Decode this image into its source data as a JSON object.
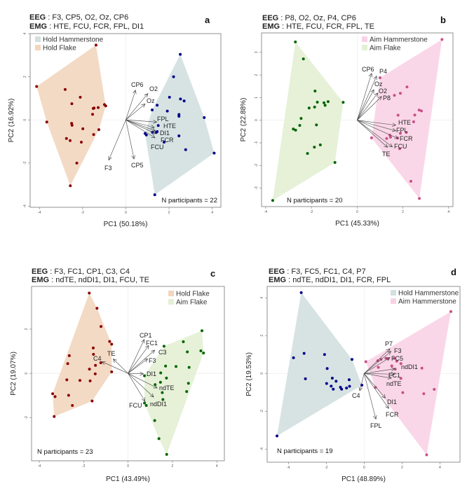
{
  "chart_data": [
    {
      "type": "scatter",
      "panel": "a",
      "eeg_label": "EEG",
      "eeg": " : F3, CP5, O2, Oz, CP6",
      "emg_label": "EMG",
      "emg": " : HTE, FCU, FCR, FPL, DI1",
      "xlabel": "PC1 (50.18%)",
      "ylabel": "PC2 (16.92%)",
      "annotation": "N participants = 22",
      "legend_position": "top-left",
      "xlim": [
        -4.43,
        4.4
      ],
      "ylim": [
        -4.05,
        4.0
      ],
      "xticks": [
        -4,
        -2,
        0,
        2,
        4
      ],
      "yticks": [
        -4,
        -2,
        0,
        2,
        4
      ],
      "series": [
        {
          "name": "Hold Hammerstone",
          "color": "#00008b",
          "fill": "#d3e0e0",
          "points": [
            [
              2.52,
              3.04
            ],
            [
              2.21,
              2.0
            ],
            [
              2.02,
              1.05
            ],
            [
              2.53,
              0.97
            ],
            [
              2.7,
              0.88
            ],
            [
              1.45,
              0.68
            ],
            [
              1.22,
              0.46
            ],
            [
              1.92,
              0.41
            ],
            [
              2.46,
              0.25
            ],
            [
              2.46,
              0.17
            ],
            [
              3.63,
              0.11
            ],
            [
              1.5,
              -0.26
            ],
            [
              1.23,
              -0.57
            ],
            [
              1.45,
              -0.54
            ],
            [
              1.41,
              -0.58
            ],
            [
              0.89,
              -0.63
            ],
            [
              0.95,
              -0.7
            ],
            [
              2.46,
              -0.74
            ],
            [
              1.77,
              -1.03
            ],
            [
              2.77,
              -1.38
            ],
            [
              4.09,
              -1.54
            ],
            [
              1.34,
              -3.47
            ]
          ]
        },
        {
          "name": "Hold Flake",
          "color": "#8b0000",
          "fill": "#f2d6bf",
          "points": [
            [
              -1.38,
              3.47
            ],
            [
              -4.13,
              1.55
            ],
            [
              -2.81,
              1.41
            ],
            [
              -2.11,
              1.05
            ],
            [
              -2.5,
              0.75
            ],
            [
              -0.99,
              0.71
            ],
            [
              -0.93,
              0.65
            ],
            [
              -1.28,
              0.57
            ],
            [
              -1.47,
              0.55
            ],
            [
              -1.51,
              0.53
            ],
            [
              -1.54,
              0.26
            ],
            [
              -3.66,
              -0.1
            ],
            [
              -2.51,
              -0.16
            ],
            [
              -2.49,
              -0.25
            ],
            [
              -1.99,
              -0.41
            ],
            [
              -1.25,
              -0.45
            ],
            [
              -1.49,
              -0.68
            ],
            [
              -2.75,
              -0.86
            ],
            [
              -2.58,
              -0.96
            ],
            [
              -2.06,
              -1.03
            ],
            [
              -2.27,
              -2.0
            ],
            [
              -2.57,
              -3.05
            ]
          ]
        }
      ],
      "loadings": [
        {
          "label": "CP6",
          "x": 0.45,
          "y": 1.38
        },
        {
          "label": "O2",
          "x": 1.02,
          "y": 1.22
        },
        {
          "label": "Oz",
          "x": 0.89,
          "y": 0.74
        },
        {
          "label": "FPL",
          "x": 1.43,
          "y": -0.1
        },
        {
          "label": "HTE",
          "x": 1.32,
          "y": -0.35
        },
        {
          "label": "DI1",
          "x": 1.37,
          "y": -0.51
        },
        {
          "label": "FCR",
          "x": 1.39,
          "y": -0.64
        },
        {
          "label": "FCU",
          "x": 1.35,
          "y": -0.83
        },
        {
          "label": "F3",
          "x": -0.79,
          "y": -1.86
        },
        {
          "label": "CP5",
          "x": 0.38,
          "y": -1.81
        }
      ]
    },
    {
      "type": "scatter",
      "panel": "b",
      "eeg_label": "EEG",
      "eeg": " : P8, O2, Oz, P4, CP6",
      "emg_label": "EMG",
      "emg": " : HTE, FCU, FCR, FPL, TE",
      "xlabel": "PC1 (45.33%)",
      "ylabel": "PC2 (22.88%)",
      "annotation": "N participants = 20",
      "legend_position": "top-right",
      "xlim": [
        -4.18,
        4.19
      ],
      "ylim": [
        -3.82,
        3.86
      ],
      "xticks": [
        -4,
        -2,
        0,
        2,
        4
      ],
      "yticks": [
        -3,
        -2,
        -1,
        0,
        1,
        2,
        3
      ],
      "series": [
        {
          "name": "Aim Hammerstone",
          "color": "#c94f87",
          "fill": "#f9d3e5",
          "points": [
            [
              3.71,
              3.57
            ],
            [
              1.0,
              1.88
            ],
            [
              2.18,
              1.47
            ],
            [
              1.89,
              1.19
            ],
            [
              1.63,
              1.1
            ],
            [
              2.71,
              0.45
            ],
            [
              2.81,
              0.41
            ],
            [
              2.52,
              0.23
            ],
            [
              1.79,
              0.22
            ],
            [
              2.47,
              -0.07
            ],
            [
              2.15,
              -0.54
            ],
            [
              1.89,
              -0.58
            ],
            [
              1.43,
              -0.66
            ],
            [
              1.46,
              -0.75
            ],
            [
              1.29,
              -0.81
            ],
            [
              0.63,
              -0.78
            ],
            [
              1.77,
              -0.79
            ],
            [
              1.86,
              -1.26
            ],
            [
              2.35,
              -2.7
            ],
            [
              2.72,
              -3.46
            ]
          ]
        },
        {
          "name": "Aim Flake",
          "color": "#006400",
          "fill": "#e3f0d4",
          "points": [
            [
              -2.7,
              3.46
            ],
            [
              -2.35,
              2.71
            ],
            [
              -1.84,
              1.29
            ],
            [
              -1.74,
              0.8
            ],
            [
              -1.45,
              0.77
            ],
            [
              -1.27,
              0.82
            ],
            [
              -1.4,
              0.66
            ],
            [
              -1.86,
              0.58
            ],
            [
              -2.1,
              0.54
            ],
            [
              -0.61,
              0.79
            ],
            [
              -2.45,
              0.08
            ],
            [
              -2.51,
              -0.23
            ],
            [
              -2.79,
              -0.39
            ],
            [
              -2.69,
              -0.44
            ],
            [
              -1.78,
              -0.21
            ],
            [
              -1.61,
              -1.09
            ],
            [
              -1.87,
              -1.19
            ],
            [
              -2.17,
              -1.47
            ],
            [
              -0.97,
              -1.87
            ],
            [
              -3.69,
              -3.55
            ]
          ]
        }
      ],
      "loadings": [
        {
          "label": "CP6",
          "x": 0.63,
          "y": 2.07
        },
        {
          "label": "P4",
          "x": 0.85,
          "y": 1.95
        },
        {
          "label": "Oz",
          "x": 0.73,
          "y": 1.35
        },
        {
          "label": "O2",
          "x": 0.9,
          "y": 1.2
        },
        {
          "label": "P8",
          "x": 1.07,
          "y": 1.05
        },
        {
          "label": "HTE",
          "x": 1.69,
          "y": -0.22
        },
        {
          "label": "FPL",
          "x": 1.69,
          "y": -0.47
        },
        {
          "label": "FCR",
          "x": 1.79,
          "y": -0.81
        },
        {
          "label": "FCU",
          "x": 1.54,
          "y": -1.18
        },
        {
          "label": "TE",
          "x": 1.33,
          "y": -1.2
        }
      ]
    },
    {
      "type": "scatter",
      "panel": "c",
      "eeg_label": "EEG",
      "eeg": " : F3, FC1, CP1, C3, C4",
      "emg_label": "EMG",
      "emg": " : ndTE, ndDI1, DI1, FCU, TE",
      "xlabel": "PC1 (43.49%)",
      "ylabel": "PC2 (19.07%)",
      "annotation": "N participants = 23",
      "legend_position": "top-right",
      "xlim": [
        -4.35,
        4.34
      ],
      "ylim": [
        -3.95,
        3.93
      ],
      "xticks": [
        -4,
        -2,
        0,
        2,
        4
      ],
      "yticks": [
        -2,
        0,
        2
      ],
      "series": [
        {
          "name": "Hold Flake",
          "color": "#8b0000",
          "fill": "#f2d6bf",
          "points": [
            [
              -1.75,
              3.63
            ],
            [
              -1.4,
              2.94
            ],
            [
              -1.22,
              2.12
            ],
            [
              -0.83,
              1.44
            ],
            [
              -0.74,
              1.32
            ],
            [
              -1.57,
              1.15
            ],
            [
              -1.56,
              0.86
            ],
            [
              -2.65,
              0.8
            ],
            [
              -2.72,
              0.44
            ],
            [
              -1.23,
              0.48
            ],
            [
              -1.47,
              0.36
            ],
            [
              -1.74,
              0.19
            ],
            [
              -0.74,
              0.07
            ],
            [
              -1.48,
              -0.02
            ],
            [
              -2.76,
              -0.29
            ],
            [
              -2.17,
              -0.32
            ],
            [
              -1.71,
              -0.34
            ],
            [
              -3.4,
              -0.92
            ],
            [
              -3.29,
              -1.05
            ],
            [
              -2.68,
              -0.99
            ],
            [
              -1.62,
              -1.25
            ],
            [
              -2.51,
              -1.45
            ],
            [
              -3.33,
              -1.95
            ]
          ]
        },
        {
          "name": "Aim Flake",
          "color": "#006400",
          "fill": "#e3f0d4",
          "points": [
            [
              3.33,
              1.93
            ],
            [
              1.62,
              1.23
            ],
            [
              2.49,
              1.43
            ],
            [
              2.67,
              0.97
            ],
            [
              3.28,
              1.02
            ],
            [
              3.4,
              0.92
            ],
            [
              1.69,
              0.33
            ],
            [
              2.16,
              0.31
            ],
            [
              2.75,
              0.27
            ],
            [
              1.47,
              0.02
            ],
            [
              0.74,
              -0.11
            ],
            [
              1.73,
              -0.21
            ],
            [
              1.46,
              -0.4
            ],
            [
              1.22,
              -0.51
            ],
            [
              2.72,
              -0.45
            ],
            [
              2.64,
              -0.82
            ],
            [
              1.54,
              -0.87
            ],
            [
              1.57,
              -1.18
            ],
            [
              0.74,
              -1.34
            ],
            [
              0.82,
              -1.45
            ],
            [
              1.2,
              -2.13
            ],
            [
              1.39,
              -2.95
            ],
            [
              1.74,
              -3.66
            ]
          ]
        }
      ],
      "loadings": [
        {
          "label": "CP1",
          "x": 0.73,
          "y": 1.53
        },
        {
          "label": "FC1",
          "x": 0.93,
          "y": 1.26
        },
        {
          "label": "C3",
          "x": 1.2,
          "y": 1.05
        },
        {
          "label": "F3",
          "x": 0.88,
          "y": 0.66
        },
        {
          "label": "DI1",
          "x": 0.69,
          "y": -0.02
        },
        {
          "label": "ndTE",
          "x": 1.31,
          "y": -0.66
        },
        {
          "label": "ndDI1",
          "x": 1.15,
          "y": -1.07
        },
        {
          "label": "FCU",
          "x": 0.76,
          "y": -1.26
        },
        {
          "label": "C4",
          "x": -1.18,
          "y": 0.53
        },
        {
          "label": "TE",
          "x": -0.67,
          "y": 0.65
        }
      ]
    },
    {
      "type": "scatter",
      "panel": "d",
      "eeg_label": "EEG",
      "eeg": " : F3, FC5, FC1, C4, P7",
      "emg_label": "EMG",
      "emg": " : ndTE, ndDI1, DI1, FCR, FPL",
      "xlabel": "PC1 (48.89%)",
      "ylabel": "PC2 (19.53%)",
      "annotation": "N participants = 19",
      "legend_position": "top-right",
      "xlim": [
        -5.12,
        5.06
      ],
      "ylim": [
        -4.69,
        4.6
      ],
      "xticks": [
        -4,
        -2,
        0,
        2,
        4
      ],
      "yticks": [
        -4,
        -2,
        0,
        2,
        4
      ],
      "series": [
        {
          "name": "Hold Hammerstone",
          "color": "#00008b",
          "fill": "#d3e0e0",
          "points": [
            [
              -3.32,
              4.27
            ],
            [
              -3.73,
              0.83
            ],
            [
              -3.17,
              1.06
            ],
            [
              -2.09,
              1.0
            ],
            [
              -0.64,
              0.74
            ],
            [
              -1.95,
              0.26
            ],
            [
              -3.1,
              -0.28
            ],
            [
              -1.68,
              -0.25
            ],
            [
              -1.98,
              -0.53
            ],
            [
              -1.48,
              -0.41
            ],
            [
              -1.74,
              -0.67
            ],
            [
              -1.63,
              -0.83
            ],
            [
              -1.25,
              -0.73
            ],
            [
              -1.19,
              -0.83
            ],
            [
              -0.93,
              -0.77
            ],
            [
              -0.79,
              -0.33
            ],
            [
              -0.77,
              -0.68
            ],
            [
              -0.12,
              -0.62
            ],
            [
              -4.6,
              -3.3
            ]
          ]
        },
        {
          "name": "Aim Hammerstone",
          "color": "#c94f87",
          "fill": "#f9d3e5",
          "points": [
            [
              4.58,
              3.27
            ],
            [
              0.09,
              0.62
            ],
            [
              0.72,
              0.67
            ],
            [
              0.89,
              0.74
            ],
            [
              1.15,
              0.8
            ],
            [
              1.26,
              0.78
            ],
            [
              1.59,
              0.8
            ],
            [
              1.94,
              0.52
            ],
            [
              1.72,
              0.65
            ],
            [
              0.75,
              0.32
            ],
            [
              1.46,
              0.4
            ],
            [
              1.64,
              0.23
            ],
            [
              3.05,
              0.28
            ],
            [
              1.94,
              -0.26
            ],
            [
              0.6,
              -0.74
            ],
            [
              2.04,
              -1.01
            ],
            [
              3.15,
              -1.07
            ],
            [
              3.7,
              -0.84
            ],
            [
              3.3,
              -4.3
            ]
          ]
        }
      ],
      "loadings": [
        {
          "label": "P7",
          "x": 1.36,
          "y": 1.3
        },
        {
          "label": "F3",
          "x": 1.42,
          "y": 1.17
        },
        {
          "label": "FC5",
          "x": 1.36,
          "y": 0.84
        },
        {
          "label": "ndDI1",
          "x": 1.62,
          "y": 0.25
        },
        {
          "label": "FC1",
          "x": 1.62,
          "y": -0.04
        },
        {
          "label": "ndTE",
          "x": 1.44,
          "y": -0.25
        },
        {
          "label": "DI1",
          "x": 1.12,
          "y": -1.3
        },
        {
          "label": "FCR",
          "x": 1.3,
          "y": -1.85
        },
        {
          "label": "FPL",
          "x": 0.62,
          "y": -2.41
        },
        {
          "label": "C4",
          "x": -0.23,
          "y": -0.91
        }
      ]
    }
  ]
}
